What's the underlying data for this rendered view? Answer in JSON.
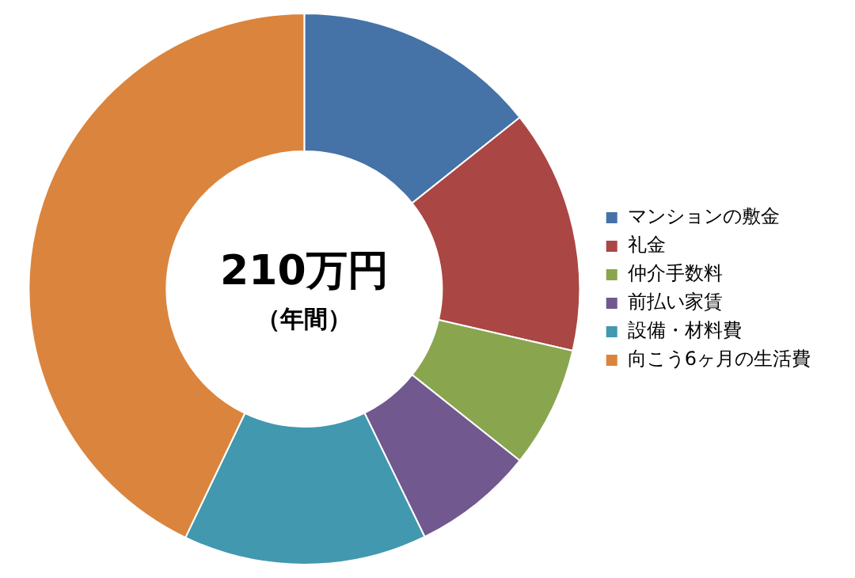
{
  "chart_data": {
    "type": "donut",
    "categories": [
      "マンションの敷金",
      "礼金",
      "仲介手数料",
      "前払い家賃",
      "設備・材料費",
      "向こう6ヶ月の生活費"
    ],
    "values": [
      14.3,
      14.3,
      7.1,
      7.1,
      14.3,
      42.9
    ],
    "colors": [
      "#4572a7",
      "#aa4643",
      "#89a54e",
      "#71588f",
      "#4198af",
      "#db843d"
    ],
    "annotations": [
      "210万円",
      "（年間）"
    ],
    "legend": "right"
  }
}
